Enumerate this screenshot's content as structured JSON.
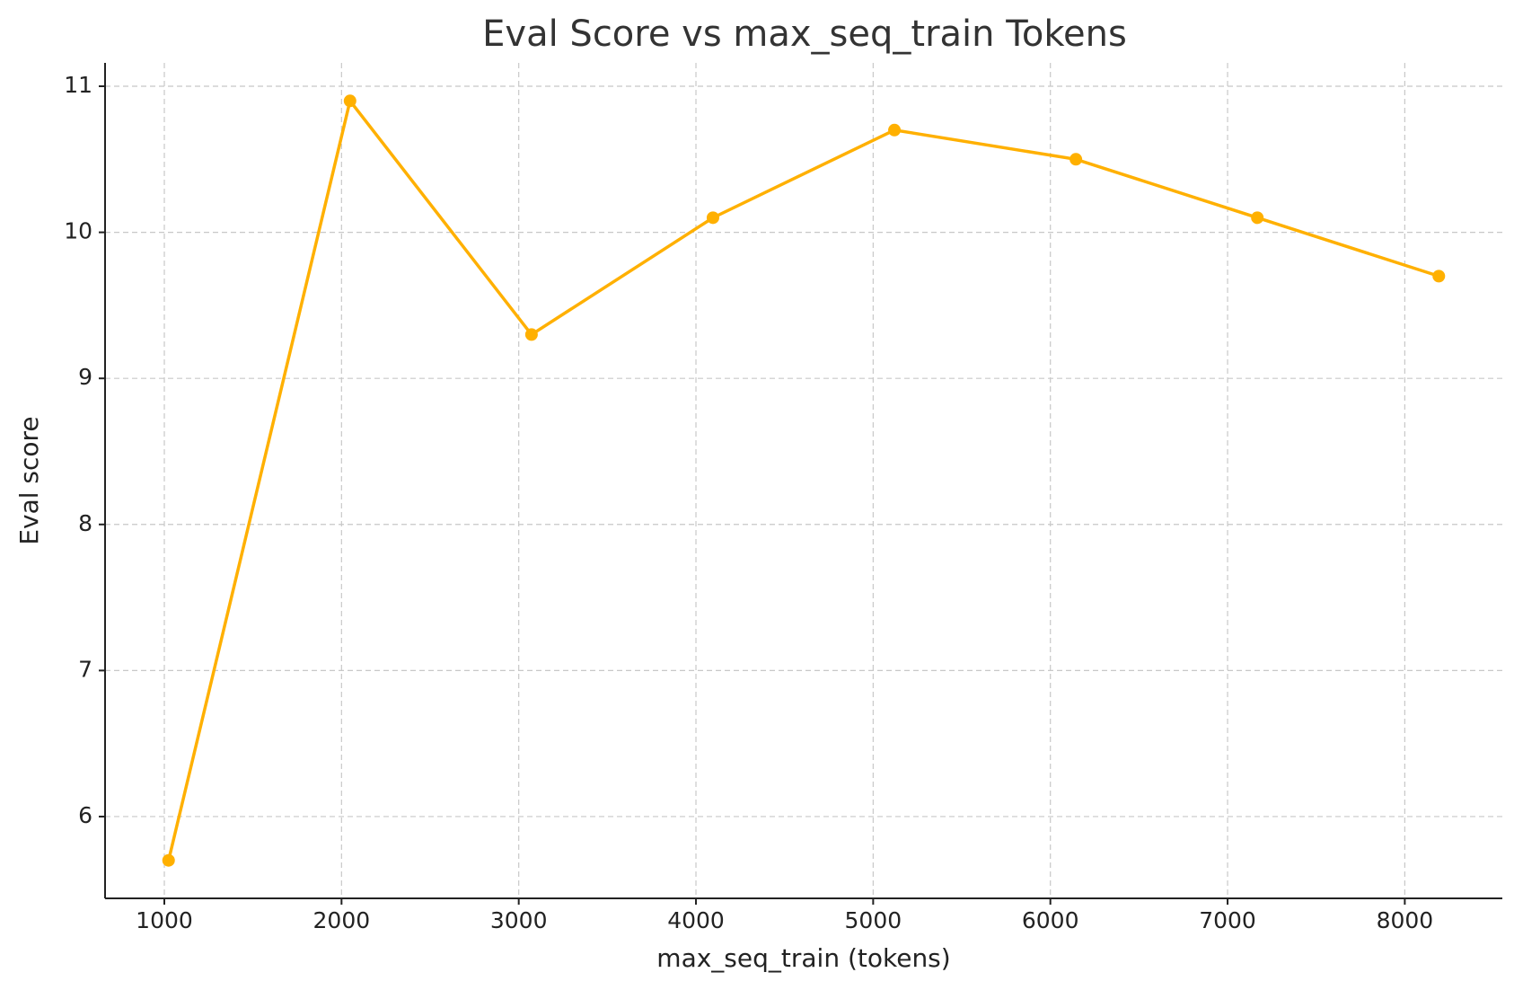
{
  "chart_data": {
    "type": "line",
    "title": "Eval Score vs max_seq_train Tokens",
    "x_label": "max_seq_train (tokens)",
    "y_label": "Eval score",
    "x": [
      1024,
      2048,
      3072,
      4096,
      5120,
      6144,
      7168,
      8192
    ],
    "series": [
      {
        "name": "Eval score",
        "color": "#ffb000",
        "values": [
          5.7,
          10.9,
          9.3,
          10.1,
          10.7,
          10.5,
          10.1,
          9.7
        ]
      }
    ],
    "xlim": [
      665.6,
      8550.4
    ],
    "ylim": [
      5.44,
      11.16
    ],
    "xticks": [
      1000,
      2000,
      3000,
      4000,
      5000,
      6000,
      7000,
      8000
    ],
    "yticks": [
      6,
      7,
      8,
      9,
      10,
      11
    ],
    "grid": true
  }
}
